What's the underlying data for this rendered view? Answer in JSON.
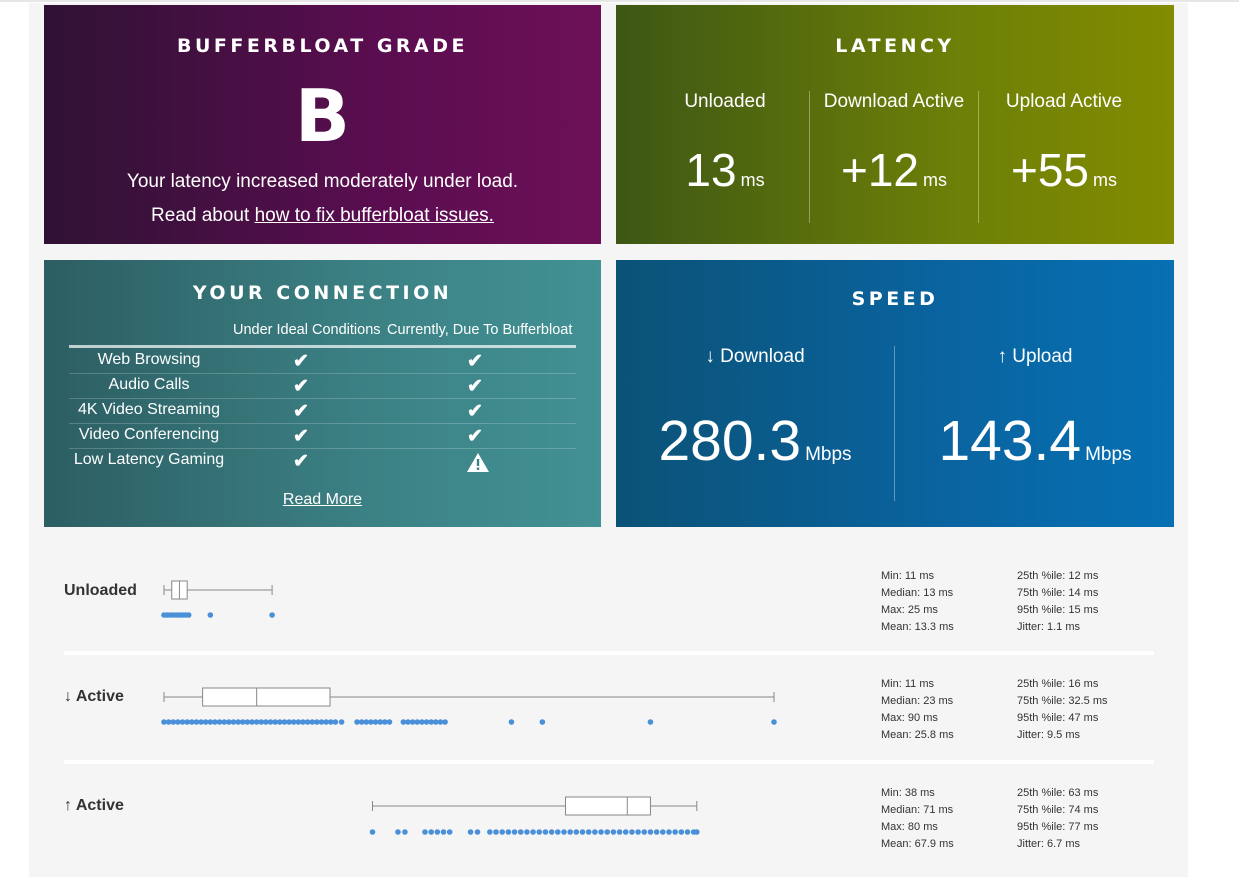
{
  "grade": {
    "title": "BUFFERBLOAT GRADE",
    "letter": "B",
    "message": "Your latency increased moderately under load.",
    "fix_prefix": "Read about ",
    "fix_link": "how to fix bufferbloat issues."
  },
  "latency": {
    "title": "LATENCY",
    "columns": [
      {
        "label": "Unloaded",
        "value": "13",
        "unit": "ms"
      },
      {
        "label": "Download Active",
        "value": "+12",
        "unit": "ms"
      },
      {
        "label": "Upload Active",
        "value": "+55",
        "unit": "ms"
      }
    ]
  },
  "connection": {
    "title": "YOUR CONNECTION",
    "col_ideal": "Under Ideal Conditions",
    "col_current": "Currently, Due To Bufferbloat",
    "rows": [
      {
        "name": "Web Browsing",
        "ideal": "✔",
        "current": "✔"
      },
      {
        "name": "Audio Calls",
        "ideal": "✔",
        "current": "✔"
      },
      {
        "name": "4K Video Streaming",
        "ideal": "✔",
        "current": "✔"
      },
      {
        "name": "Video Conferencing",
        "ideal": "✔",
        "current": "✔"
      },
      {
        "name": "Low Latency Gaming",
        "ideal": "✔",
        "current": "warning-icon"
      }
    ],
    "read_more": "Read More"
  },
  "speed": {
    "title": "SPEED",
    "download": {
      "label": "↓ Download",
      "value": "280.3",
      "unit": "Mbps"
    },
    "upload": {
      "label": "↑ Upload",
      "value": "143.4",
      "unit": "Mbps"
    }
  },
  "chart_data": {
    "type": "boxplot",
    "unit": "ms",
    "axis_range": [
      11,
      90
    ],
    "series": [
      {
        "name": "Unloaded",
        "min": 11,
        "q1": 12,
        "median": 13,
        "q3": 14,
        "max": 25,
        "points": [
          11,
          11.4,
          11.8,
          12.2,
          12.6,
          13,
          13.4,
          13.8,
          14.2,
          17,
          25
        ],
        "stats": {
          "min": "11 ms",
          "median": "13 ms",
          "max": "25 ms",
          "mean": "13.3 ms",
          "p25": "12 ms",
          "p75": "14 ms",
          "p95": "15 ms",
          "jitter": "1.1 ms"
        }
      },
      {
        "name": "↓ Active",
        "min": 11,
        "q1": 16,
        "median": 23,
        "q3": 32.5,
        "max": 90,
        "points": [
          11,
          11.6,
          12.2,
          12.8,
          13.4,
          14,
          14.6,
          15.2,
          15.8,
          16.4,
          17,
          17.6,
          18.2,
          18.8,
          19.4,
          20,
          20.6,
          21.2,
          21.8,
          22.4,
          23,
          23.6,
          24.2,
          24.8,
          25.4,
          26,
          26.6,
          27.2,
          27.8,
          28.4,
          29,
          29.6,
          30.2,
          30.8,
          31.4,
          32,
          32.6,
          33.2,
          34,
          36,
          36.6,
          37.2,
          37.8,
          38.4,
          39,
          39.6,
          40.2,
          42,
          42.6,
          43.2,
          43.8,
          44.4,
          45,
          45.6,
          46.2,
          46.8,
          47.4,
          56,
          60,
          74,
          90
        ],
        "stats": {
          "min": "11 ms",
          "median": "23 ms",
          "max": "90 ms",
          "mean": "25.8 ms",
          "p25": "16 ms",
          "p75": "32.5 ms",
          "p95": "47 ms",
          "jitter": "9.5 ms"
        }
      },
      {
        "name": "↑ Active",
        "min": 38,
        "q1": 63,
        "median": 71,
        "q3": 74,
        "max": 80,
        "points": [
          38,
          41.3,
          42.2,
          44.8,
          45.6,
          46.4,
          47.2,
          48,
          50.7,
          51.6,
          53.2,
          54,
          54.8,
          55.6,
          56.4,
          57.2,
          58,
          58.8,
          59.6,
          60.4,
          61.2,
          62,
          62.8,
          63.6,
          64.4,
          65.2,
          66,
          66.8,
          67.6,
          68.4,
          69.2,
          70,
          70.8,
          71.6,
          72.4,
          73.2,
          74,
          74.8,
          75.6,
          76.4,
          77.2,
          78,
          78.8,
          79.6,
          80
        ],
        "stats": {
          "min": "38 ms",
          "median": "71 ms",
          "max": "80 ms",
          "mean": "67.9 ms",
          "p25": "63 ms",
          "p75": "74 ms",
          "p95": "77 ms",
          "jitter": "6.7 ms"
        }
      }
    ],
    "stat_labels": {
      "min": "Min:",
      "median": "Median:",
      "max": "Max:",
      "mean": "Mean:",
      "p25": "25th %ile:",
      "p75": "75th %ile:",
      "p95": "95th %ile:",
      "jitter": "Jitter:"
    }
  },
  "colors": {
    "dot": "#4a90d9",
    "box_stroke": "#888888"
  }
}
